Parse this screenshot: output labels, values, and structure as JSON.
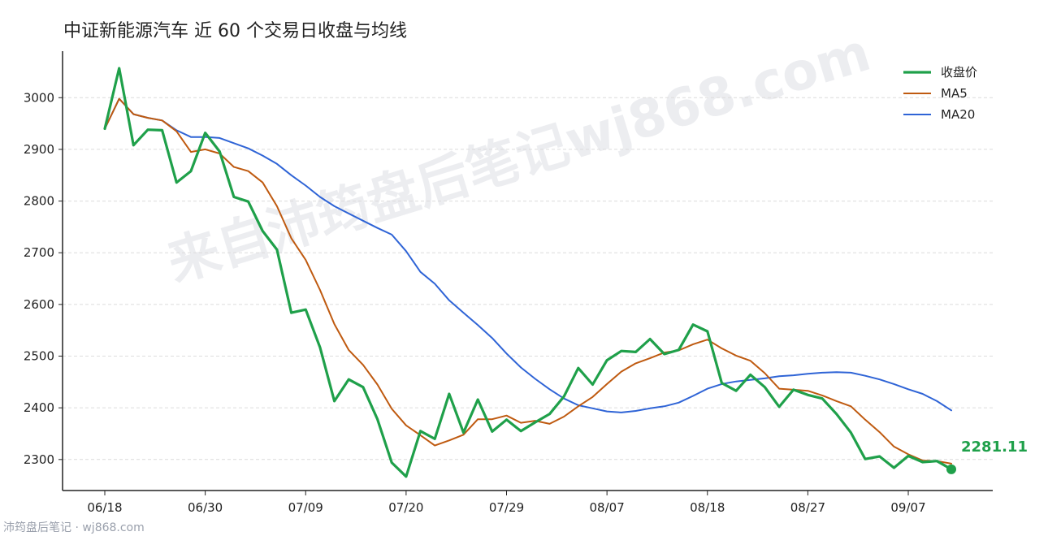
{
  "watermark": "来自沛筠盘后笔记wj868.com",
  "source_note": "沛筠盘后笔记 · wj868.com",
  "chart_data": {
    "type": "line",
    "title": "中证新能源汽车 近 60 个交易日收盘与均线",
    "xlabel": "",
    "ylabel": "",
    "ylim": [
      2240,
      3090
    ],
    "yticks": [
      2300,
      2400,
      2500,
      2600,
      2700,
      2800,
      2900,
      3000
    ],
    "xticks": [
      {
        "index": 0,
        "label": "06/18"
      },
      {
        "index": 7,
        "label": "06/30"
      },
      {
        "index": 14,
        "label": "07/09"
      },
      {
        "index": 21,
        "label": "07/20"
      },
      {
        "index": 28,
        "label": "07/29"
      },
      {
        "index": 35,
        "label": "08/07"
      },
      {
        "index": 42,
        "label": "08/18"
      },
      {
        "index": 49,
        "label": "08/27"
      },
      {
        "index": 56,
        "label": "09/07"
      }
    ],
    "grid": "horizontal-dashed",
    "legend_position": "top-right",
    "end_label": "2281.11",
    "series": [
      {
        "name": "收盘价",
        "color": "#1fa04a",
        "width": 3.2,
        "values": [
          2940,
          3057,
          2908,
          2938,
          2937,
          2836,
          2858,
          2932,
          2896,
          2808,
          2799,
          2742,
          2706,
          2584,
          2590,
          2517,
          2413,
          2455,
          2440,
          2378,
          2294,
          2267,
          2355,
          2340,
          2427,
          2352,
          2416,
          2354,
          2377,
          2355,
          2372,
          2388,
          2422,
          2477,
          2445,
          2492,
          2510,
          2508,
          2533,
          2504,
          2512,
          2561,
          2548,
          2448,
          2433,
          2464,
          2440,
          2402,
          2435,
          2425,
          2418,
          2388,
          2352,
          2301,
          2306,
          2284,
          2307,
          2295,
          2297,
          2281.11
        ]
      },
      {
        "name": "MA5",
        "color": "#bf5a10",
        "width": 2,
        "values": [
          2940,
          2998,
          2968,
          2961,
          2956,
          2935,
          2895,
          2900,
          2892,
          2866,
          2858,
          2836,
          2790,
          2728,
          2686,
          2628,
          2562,
          2512,
          2483,
          2445,
          2398,
          2366,
          2347,
          2327,
          2337,
          2348,
          2378,
          2378,
          2385,
          2371,
          2375,
          2369,
          2383,
          2403,
          2421,
          2446,
          2470,
          2486,
          2496,
          2507,
          2511,
          2523,
          2532,
          2515,
          2501,
          2491,
          2467,
          2437,
          2435,
          2433,
          2424,
          2413,
          2403,
          2377,
          2353,
          2325,
          2310,
          2298,
          2297,
          2292
        ]
      },
      {
        "name": "MA20",
        "color": "#2f64d6",
        "width": 2,
        "values": [
          2940,
          2998,
          2968,
          2961,
          2956,
          2937,
          2924,
          2924,
          2922,
          2912,
          2902,
          2888,
          2872,
          2850,
          2830,
          2808,
          2790,
          2776,
          2762,
          2748,
          2735,
          2703,
          2663,
          2640,
          2608,
          2584,
          2560,
          2535,
          2505,
          2478,
          2456,
          2436,
          2418,
          2405,
          2399,
          2393,
          2391,
          2394,
          2399,
          2403,
          2410,
          2423,
          2437,
          2446,
          2451,
          2454,
          2457,
          2461,
          2463,
          2466,
          2468,
          2469,
          2468,
          2462,
          2455,
          2446,
          2436,
          2427,
          2413,
          2395
        ]
      }
    ]
  }
}
